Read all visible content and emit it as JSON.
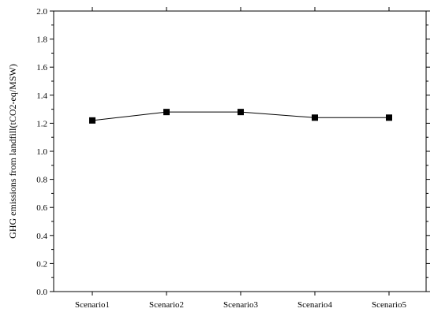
{
  "chart_data": {
    "type": "line",
    "title": "",
    "xlabel": "",
    "ylabel": "GHG emissions from landfill(tCO2-eq/MSW)",
    "categories": [
      "Scenario1",
      "Scenario2",
      "Scenario3",
      "Scenario4",
      "Scenario5"
    ],
    "series": [
      {
        "values": [
          1.22,
          1.28,
          1.28,
          1.24,
          1.24
        ]
      }
    ],
    "ylim": [
      0.0,
      2.0
    ],
    "yticks": [
      "0.0",
      "0.2",
      "0.4",
      "0.6",
      "0.8",
      "1.0",
      "1.2",
      "1.4",
      "1.6",
      "1.8",
      "2.0"
    ],
    "grid": false,
    "legend": "none",
    "marker": "square",
    "line_color": "#000000"
  }
}
